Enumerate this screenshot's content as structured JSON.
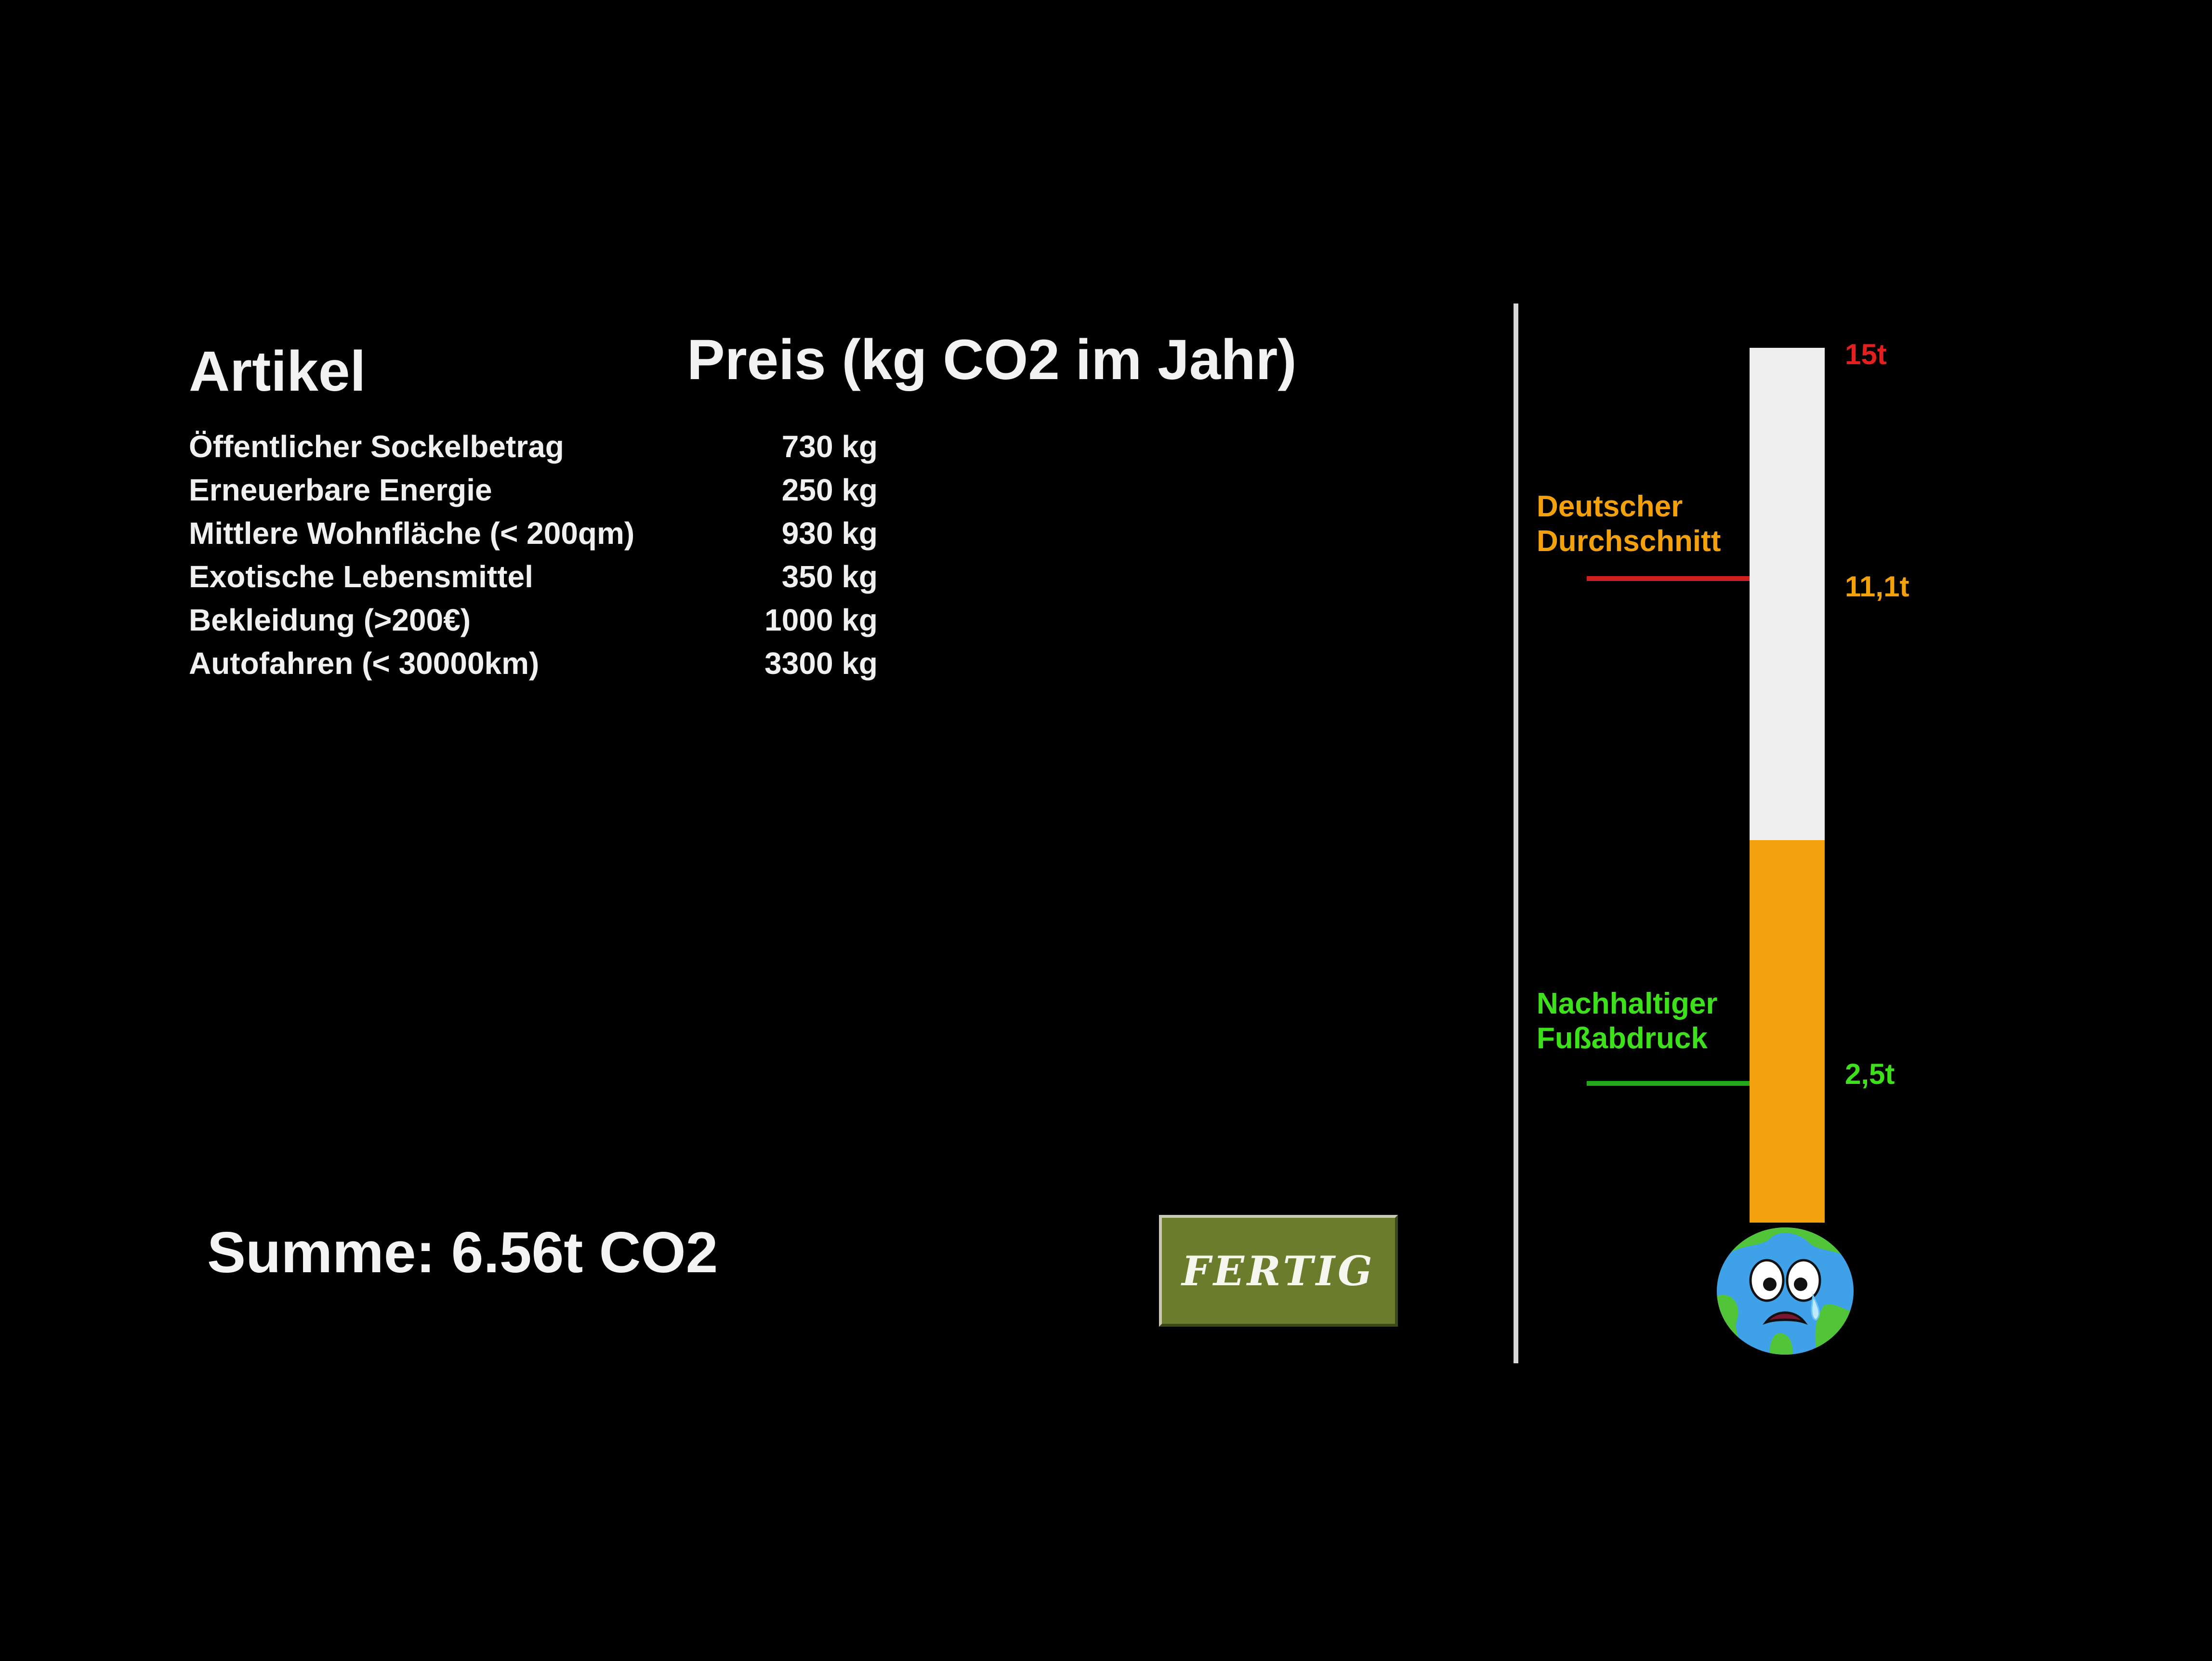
{
  "table": {
    "header_article": "Artikel",
    "header_price": "Preis (kg CO2 im Jahr)",
    "items": [
      {
        "name": "Öffentlicher Sockelbetrag",
        "value": "730 kg"
      },
      {
        "name": "Erneuerbare Energie",
        "value": "250 kg"
      },
      {
        "name": "Mittlere Wohnfläche (< 200qm)",
        "value": "930 kg"
      },
      {
        "name": "Exotische Lebensmittel",
        "value": "350 kg"
      },
      {
        "name": "Bekleidung (>200€)",
        "value": "1000 kg"
      },
      {
        "name": "Autofahren (< 30000km)",
        "value": "3300 kg"
      }
    ]
  },
  "summary": {
    "total_label": "Summe: 6.56t CO2"
  },
  "done_button": {
    "label": "FERTIG"
  },
  "thermometer": {
    "max_label": "15t",
    "max_value_t": 15,
    "current_value_t": 6.56,
    "average": {
      "label_line1": "Deutscher",
      "label_line2": "Durchschnitt",
      "value_label": "11,1t",
      "value_t": 11.1
    },
    "sustainable": {
      "label_line1": "Nachhaltiger",
      "label_line2": "Fußabdruck",
      "value_label": "2,5t",
      "value_t": 2.5
    },
    "colors": {
      "fill": "#f2a10c",
      "tube": "#eeeeee",
      "max": "#e32020",
      "average": "#f2a10c",
      "average_line": "#d31f1f",
      "sustainable": "#3ee01c",
      "sustainable_line": "#22a81a"
    }
  },
  "earth_icon": "sad-earth-icon"
}
